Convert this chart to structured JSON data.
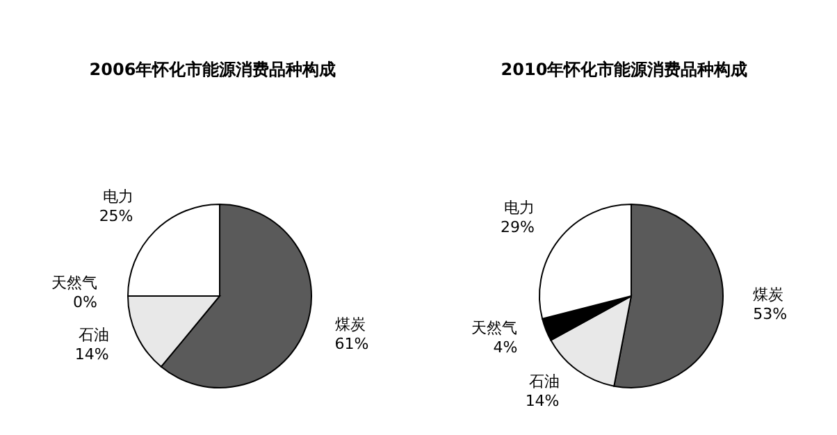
{
  "chart_data": [
    {
      "type": "pie",
      "title": "2006年怀化市能源消费品种构成",
      "categories": [
        "煤炭",
        "石油",
        "天然气",
        "电力"
      ],
      "values": [
        61,
        14,
        0,
        25
      ],
      "value_labels": [
        "61%",
        "14%",
        "0%",
        "25%"
      ],
      "colors": [
        "#5a5a5a",
        "#e8e8e8",
        "#000000",
        "#ffffff"
      ],
      "legend": false
    },
    {
      "type": "pie",
      "title": "2010年怀化市能源消费品种构成",
      "categories": [
        "煤炭",
        "石油",
        "天然气",
        "电力"
      ],
      "values": [
        53,
        14,
        4,
        29
      ],
      "value_labels": [
        "53%",
        "14%",
        "4%",
        "29%"
      ],
      "colors": [
        "#5a5a5a",
        "#e8e8e8",
        "#000000",
        "#ffffff"
      ],
      "legend": false
    }
  ]
}
